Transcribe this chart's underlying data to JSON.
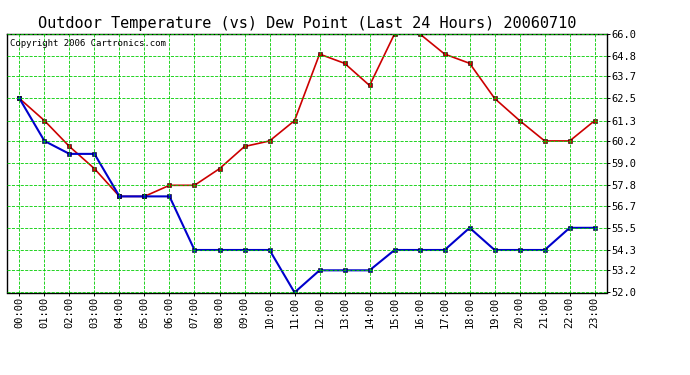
{
  "title": "Outdoor Temperature (vs) Dew Point (Last 24 Hours) 20060710",
  "copyright_text": "Copyright 2006 Cartronics.com",
  "x_labels": [
    "00:00",
    "01:00",
    "02:00",
    "03:00",
    "04:00",
    "05:00",
    "06:00",
    "07:00",
    "08:00",
    "09:00",
    "10:00",
    "11:00",
    "12:00",
    "13:00",
    "14:00",
    "15:00",
    "16:00",
    "17:00",
    "18:00",
    "19:00",
    "20:00",
    "21:00",
    "22:00",
    "23:00"
  ],
  "temp_data": [
    62.5,
    61.3,
    59.9,
    58.7,
    57.2,
    57.2,
    57.8,
    57.8,
    58.7,
    59.9,
    60.2,
    61.3,
    64.9,
    64.4,
    63.2,
    66.0,
    66.0,
    64.9,
    64.4,
    62.5,
    61.3,
    60.2,
    60.2,
    61.3
  ],
  "dew_data": [
    62.5,
    60.2,
    59.5,
    59.5,
    57.2,
    57.2,
    57.2,
    54.3,
    54.3,
    54.3,
    54.3,
    52.0,
    53.2,
    53.2,
    53.2,
    54.3,
    54.3,
    54.3,
    55.5,
    54.3,
    54.3,
    54.3,
    55.5,
    55.5
  ],
  "temp_color": "#cc0000",
  "dew_color": "#0000cc",
  "bg_color": "#ffffff",
  "plot_bg_color": "#ffffff",
  "grid_color": "#00cc00",
  "ylim_min": 52.0,
  "ylim_max": 66.0,
  "yticks": [
    52.0,
    53.2,
    54.3,
    55.5,
    56.7,
    57.8,
    59.0,
    60.2,
    61.3,
    62.5,
    63.7,
    64.8,
    66.0
  ],
  "title_fontsize": 11,
  "copyright_fontsize": 6.5,
  "tick_fontsize": 7.5
}
